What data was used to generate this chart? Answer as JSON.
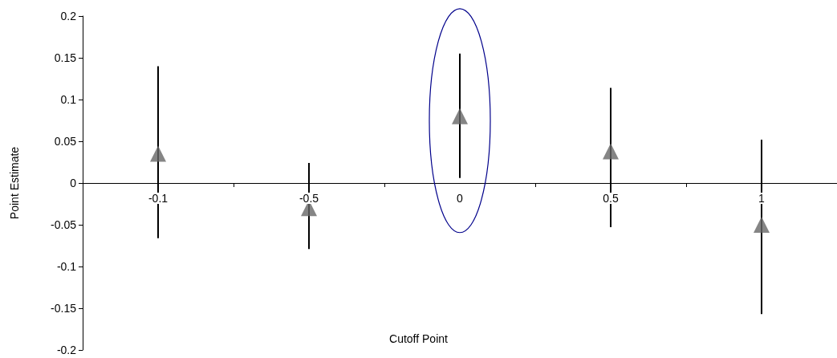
{
  "chart_data": {
    "type": "scatter",
    "xlabel": "Cutoff Point",
    "ylabel": "Point Estimate",
    "categories": [
      "-0.1",
      "-0.5",
      "0",
      "0.5",
      "1"
    ],
    "values": [
      0.035,
      -0.03,
      0.08,
      0.038,
      -0.05
    ],
    "errors": [
      [
        -0.066,
        0.14
      ],
      [
        -0.079,
        0.024
      ],
      [
        0.006,
        0.155
      ],
      [
        -0.053,
        0.114
      ],
      [
        -0.157,
        0.052
      ]
    ],
    "color": "#666666",
    "marker": "triangle",
    "ylim": [
      -0.2,
      0.2
    ],
    "yticks": [
      -0.2,
      -0.15,
      -0.1,
      -0.05,
      0,
      0.05,
      0.1,
      0.15,
      0.2
    ],
    "grid": false
  }
}
